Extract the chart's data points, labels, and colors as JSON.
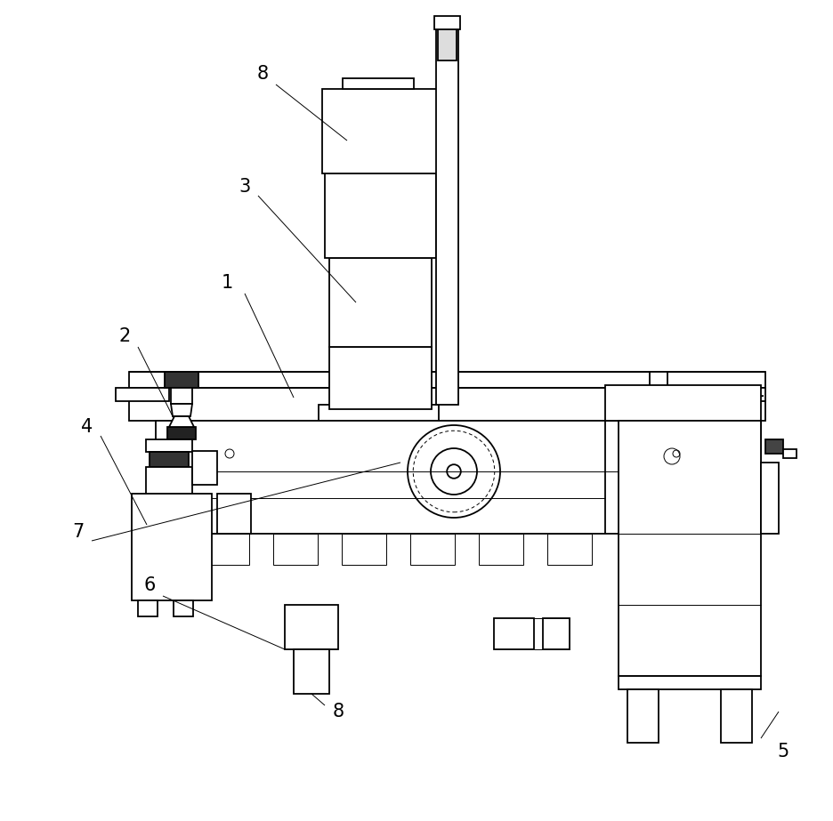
{
  "bg_color": "#ffffff",
  "line_color": "#000000",
  "lw": 1.3,
  "tlw": 0.7,
  "fs": 15
}
